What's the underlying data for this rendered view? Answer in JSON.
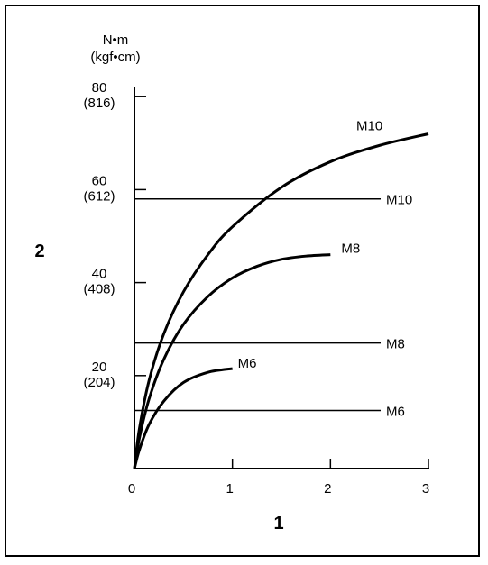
{
  "chart_data": {
    "type": "line",
    "title": "",
    "xlabel": "1",
    "ylabel": "2",
    "y_unit": [
      "N•m",
      "(kgf•cm)"
    ],
    "xlim": [
      0,
      3
    ],
    "ylim": [
      0,
      85
    ],
    "x_ticks": [
      {
        "value": 0,
        "label": "0"
      },
      {
        "value": 1,
        "label": "1"
      },
      {
        "value": 2,
        "label": "2"
      },
      {
        "value": 3,
        "label": "3"
      }
    ],
    "y_ticks": [
      {
        "value": 20,
        "label": "20",
        "sublabel": "(204)"
      },
      {
        "value": 40,
        "label": "40",
        "sublabel": "(408)"
      },
      {
        "value": 60,
        "label": "60",
        "sublabel": "(612)"
      },
      {
        "value": 80,
        "label": "80",
        "sublabel": "(816)"
      }
    ],
    "curves": [
      {
        "name": "M10",
        "x": [
          0,
          0.05,
          0.15,
          0.3,
          0.5,
          0.75,
          1.0,
          1.5,
          2.0,
          2.5,
          3.0
        ],
        "y": [
          0,
          8.5,
          19,
          29,
          38,
          46,
          52,
          60.5,
          66,
          69.5,
          72
        ]
      },
      {
        "name": "M8",
        "x": [
          0,
          0.05,
          0.15,
          0.3,
          0.5,
          0.75,
          1.0,
          1.25,
          1.5,
          1.75,
          2.0
        ],
        "y": [
          0,
          6.5,
          15,
          23.5,
          31,
          37,
          41,
          43.5,
          45,
          45.7,
          46
        ]
      },
      {
        "name": "M6",
        "x": [
          0,
          0.05,
          0.15,
          0.3,
          0.5,
          0.75,
          1.0
        ],
        "y": [
          0,
          4,
          9.5,
          14.5,
          18.5,
          20.7,
          21.5
        ]
      }
    ],
    "limit_lines": [
      {
        "name": "M10",
        "y": 58
      },
      {
        "name": "M8",
        "y": 27
      },
      {
        "name": "M6",
        "y": 12.5
      }
    ]
  }
}
